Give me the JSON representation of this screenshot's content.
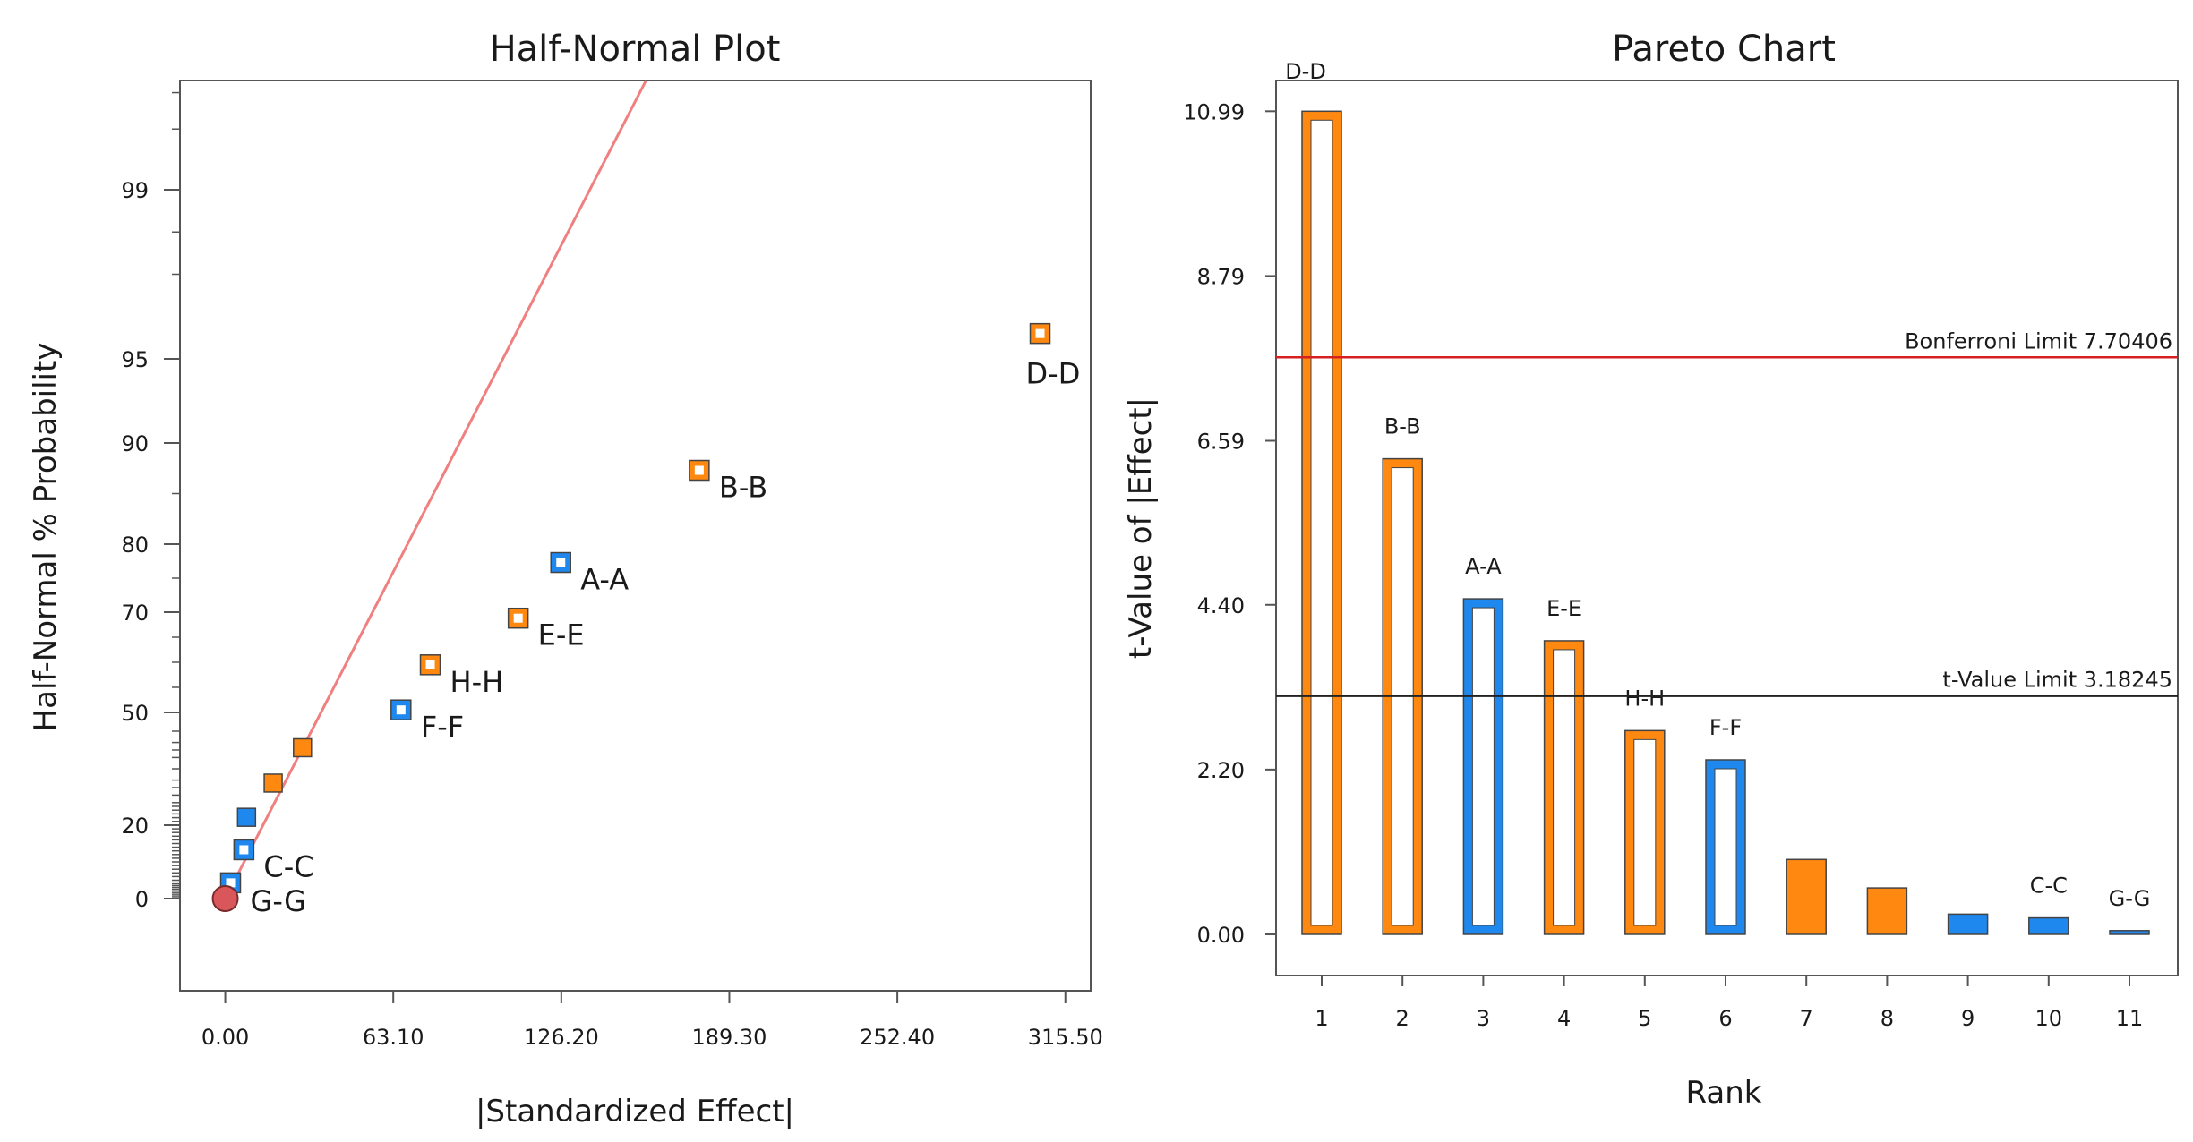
{
  "chart_data": [
    {
      "type": "scatter",
      "title": "Half-Normal Plot",
      "xlabel": "|Standardized Effect|",
      "ylabel": "Half-Normal % Probability",
      "xlim": [
        -17,
        325
      ],
      "x_ticks": [
        "0.00",
        "63.10",
        "126.20",
        "189.30",
        "252.40",
        "315.50"
      ],
      "x_tick_values": [
        0,
        63.1,
        126.2,
        189.3,
        252.4,
        315.5
      ],
      "y_ticks": [
        "0",
        "20",
        "50",
        "70",
        "80",
        "90",
        "95",
        "99"
      ],
      "y_tick_values": [
        0,
        20,
        50,
        70,
        80,
        90,
        95,
        99
      ],
      "reference_line": {
        "points": [
          [
            0,
            0
          ],
          [
            158,
            99.9
          ]
        ],
        "color": "#f08080"
      },
      "points": [
        {
          "label": "D-D",
          "x": 306,
          "y": 95.6,
          "color": "orange",
          "style": "hollow"
        },
        {
          "label": "B-B",
          "x": 178,
          "y": 87.3,
          "color": "orange",
          "style": "hollow"
        },
        {
          "label": "A-A",
          "x": 126,
          "y": 77.3,
          "color": "blue",
          "style": "hollow"
        },
        {
          "label": "E-E",
          "x": 110,
          "y": 68.8,
          "color": "orange",
          "style": "hollow"
        },
        {
          "label": "H-H",
          "x": 77,
          "y": 59.5,
          "color": "orange",
          "style": "hollow"
        },
        {
          "label": "F-F",
          "x": 66,
          "y": 50.5,
          "color": "blue",
          "style": "hollow"
        },
        {
          "label": "",
          "x": 29,
          "y": 40.6,
          "color": "orange",
          "style": "solid"
        },
        {
          "label": "",
          "x": 18,
          "y": 31.2,
          "color": "orange",
          "style": "solid"
        },
        {
          "label": "",
          "x": 8,
          "y": 22.1,
          "color": "blue",
          "style": "solid"
        },
        {
          "label": "C-C",
          "x": 7,
          "y": 13.3,
          "color": "blue",
          "style": "hollow"
        },
        {
          "label": "G-G",
          "x": 2,
          "y": 4.3,
          "color": "blue",
          "style": "hollow"
        },
        {
          "label": "G-G",
          "x": 0,
          "y": 0,
          "color": "red",
          "style": "circle"
        }
      ]
    },
    {
      "type": "bar",
      "title": "Pareto Chart",
      "xlabel": "Rank",
      "ylabel": "t-Value of |Effect|",
      "ylim": [
        -0.55,
        11.4
      ],
      "categories": [
        "1",
        "2",
        "3",
        "4",
        "5",
        "6",
        "7",
        "8",
        "9",
        "10",
        "11"
      ],
      "values": [
        10.99,
        6.35,
        4.48,
        3.92,
        2.72,
        2.33,
        1.0,
        0.62,
        0.27,
        0.22,
        0.05
      ],
      "bar_labels": [
        "D-D",
        "B-B",
        "A-A",
        "E-E",
        "H-H",
        "F-F",
        "",
        "",
        "",
        "C-C",
        "G-G"
      ],
      "bar_colors": [
        "orange",
        "orange",
        "blue",
        "orange",
        "orange",
        "blue",
        "orange",
        "orange",
        "blue",
        "blue",
        "blue"
      ],
      "bar_styles": [
        "hollow",
        "hollow",
        "hollow",
        "hollow",
        "hollow",
        "hollow",
        "solid",
        "solid",
        "solid",
        "hollow",
        "solid"
      ],
      "y_ticks": [
        "0.00",
        "2.20",
        "4.40",
        "6.59",
        "8.79",
        "10.99"
      ],
      "y_tick_values": [
        0,
        2.2,
        4.4,
        6.59,
        8.79,
        10.99
      ],
      "limits": [
        {
          "label": "Bonferroni Limit 7.70406",
          "value": 7.70406,
          "color": "#d62020"
        },
        {
          "label": "t-Value Limit 3.18245",
          "value": 3.18245,
          "color": "#222222"
        }
      ]
    }
  ],
  "colors": {
    "orange": "#ff8811",
    "blue": "#1e88ee",
    "red": "#d9575a",
    "outline": "#444444"
  }
}
